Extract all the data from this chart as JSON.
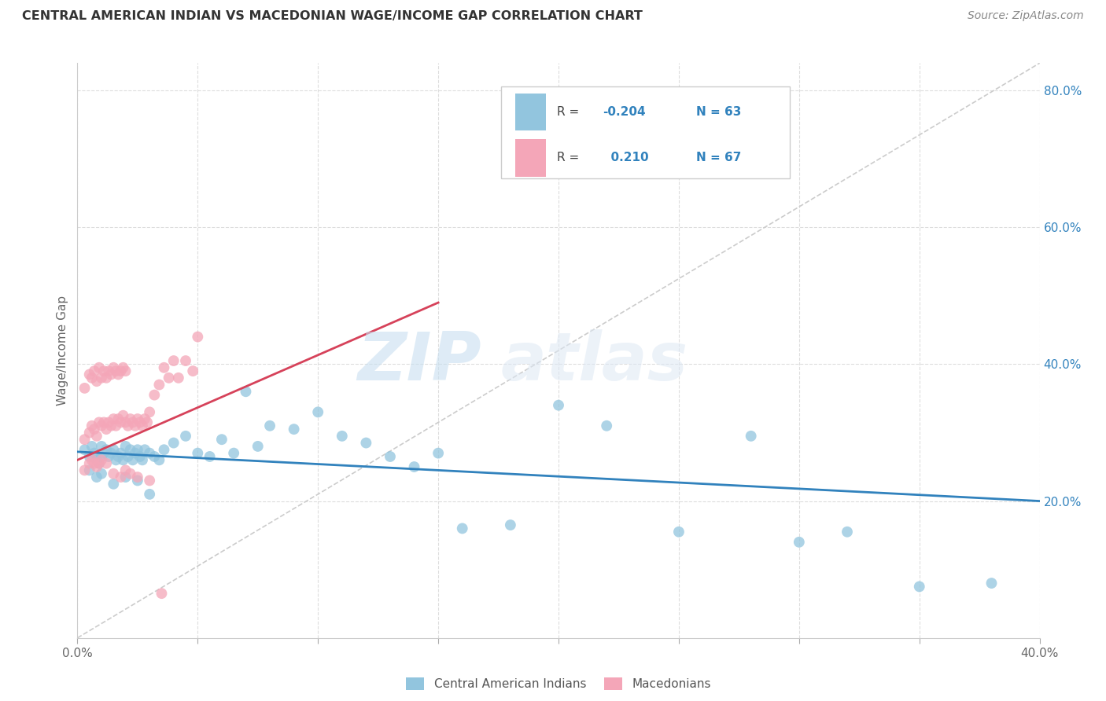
{
  "title": "CENTRAL AMERICAN INDIAN VS MACEDONIAN WAGE/INCOME GAP CORRELATION CHART",
  "source": "Source: ZipAtlas.com",
  "ylabel": "Wage/Income Gap",
  "xmin": 0.0,
  "xmax": 0.4,
  "ymin": 0.0,
  "ymax": 0.84,
  "yticks": [
    0.2,
    0.4,
    0.6,
    0.8
  ],
  "ytick_labels": [
    "20.0%",
    "40.0%",
    "60.0%",
    "80.0%"
  ],
  "xticks": [
    0.0,
    0.05,
    0.1,
    0.15,
    0.2,
    0.25,
    0.3,
    0.35,
    0.4
  ],
  "blue_color": "#92c5de",
  "pink_color": "#f4a6b8",
  "blue_line_color": "#3182bd",
  "pink_line_color": "#d6425a",
  "diagonal_color": "#cccccc",
  "watermark_zip": "ZIP",
  "watermark_atlas": "atlas",
  "blue_scatter_x": [
    0.003,
    0.005,
    0.006,
    0.007,
    0.008,
    0.009,
    0.01,
    0.01,
    0.011,
    0.012,
    0.013,
    0.014,
    0.015,
    0.016,
    0.017,
    0.018,
    0.019,
    0.02,
    0.021,
    0.022,
    0.023,
    0.024,
    0.025,
    0.026,
    0.027,
    0.028,
    0.03,
    0.032,
    0.034,
    0.036,
    0.04,
    0.045,
    0.05,
    0.055,
    0.06,
    0.065,
    0.07,
    0.075,
    0.08,
    0.09,
    0.1,
    0.11,
    0.12,
    0.13,
    0.14,
    0.15,
    0.16,
    0.18,
    0.2,
    0.22,
    0.25,
    0.28,
    0.3,
    0.32,
    0.35,
    0.38,
    0.005,
    0.008,
    0.01,
    0.015,
    0.02,
    0.025,
    0.03
  ],
  "blue_scatter_y": [
    0.275,
    0.265,
    0.28,
    0.27,
    0.26,
    0.255,
    0.28,
    0.265,
    0.27,
    0.275,
    0.265,
    0.27,
    0.275,
    0.26,
    0.265,
    0.27,
    0.26,
    0.28,
    0.265,
    0.275,
    0.26,
    0.27,
    0.275,
    0.265,
    0.26,
    0.275,
    0.27,
    0.265,
    0.26,
    0.275,
    0.285,
    0.295,
    0.27,
    0.265,
    0.29,
    0.27,
    0.36,
    0.28,
    0.31,
    0.305,
    0.33,
    0.295,
    0.285,
    0.265,
    0.25,
    0.27,
    0.16,
    0.165,
    0.34,
    0.31,
    0.155,
    0.295,
    0.14,
    0.155,
    0.075,
    0.08,
    0.245,
    0.235,
    0.24,
    0.225,
    0.235,
    0.23,
    0.21
  ],
  "pink_scatter_x": [
    0.003,
    0.005,
    0.006,
    0.007,
    0.008,
    0.009,
    0.01,
    0.011,
    0.012,
    0.013,
    0.014,
    0.015,
    0.016,
    0.017,
    0.018,
    0.019,
    0.02,
    0.021,
    0.022,
    0.023,
    0.024,
    0.025,
    0.026,
    0.027,
    0.028,
    0.029,
    0.03,
    0.032,
    0.034,
    0.036,
    0.038,
    0.04,
    0.042,
    0.045,
    0.048,
    0.05,
    0.003,
    0.005,
    0.006,
    0.007,
    0.008,
    0.009,
    0.01,
    0.011,
    0.012,
    0.013,
    0.014,
    0.015,
    0.016,
    0.017,
    0.018,
    0.019,
    0.02,
    0.003,
    0.005,
    0.006,
    0.007,
    0.008,
    0.009,
    0.01,
    0.012,
    0.015,
    0.018,
    0.02,
    0.022,
    0.025,
    0.03,
    0.035
  ],
  "pink_scatter_y": [
    0.29,
    0.3,
    0.31,
    0.305,
    0.295,
    0.315,
    0.31,
    0.315,
    0.305,
    0.315,
    0.31,
    0.32,
    0.31,
    0.32,
    0.315,
    0.325,
    0.315,
    0.31,
    0.32,
    0.315,
    0.31,
    0.32,
    0.315,
    0.31,
    0.32,
    0.315,
    0.33,
    0.355,
    0.37,
    0.395,
    0.38,
    0.405,
    0.38,
    0.405,
    0.39,
    0.44,
    0.365,
    0.385,
    0.38,
    0.39,
    0.375,
    0.395,
    0.38,
    0.39,
    0.38,
    0.39,
    0.385,
    0.395,
    0.39,
    0.385,
    0.39,
    0.395,
    0.39,
    0.245,
    0.255,
    0.26,
    0.255,
    0.25,
    0.255,
    0.26,
    0.255,
    0.24,
    0.235,
    0.245,
    0.24,
    0.235,
    0.23,
    0.065
  ],
  "blue_trend_x0": 0.0,
  "blue_trend_x1": 0.4,
  "blue_trend_y0": 0.272,
  "blue_trend_y1": 0.2,
  "pink_trend_x0": 0.0,
  "pink_trend_x1": 0.15,
  "pink_trend_y0": 0.26,
  "pink_trend_y1": 0.49
}
